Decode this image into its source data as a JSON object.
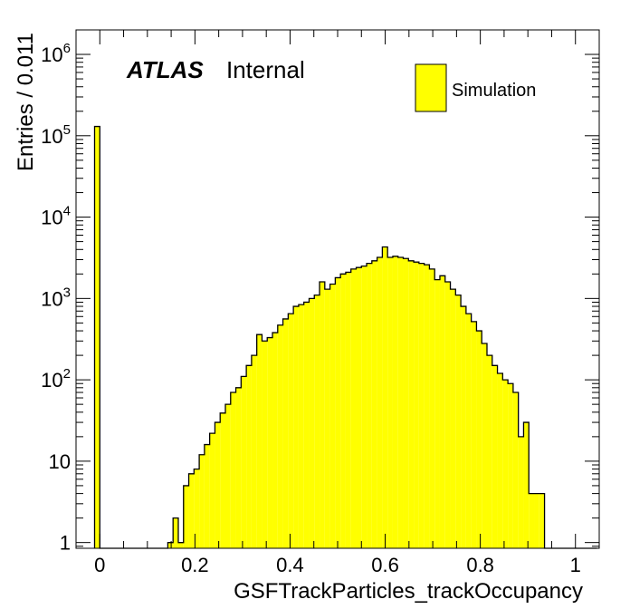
{
  "chart_data": {
    "type": "bar",
    "histogram": true,
    "bin_width": 0.011,
    "x_start": -0.011,
    "xlim": [
      -0.05,
      1.05
    ],
    "ylim": [
      0.85,
      2000000
    ],
    "log_y": true,
    "xlabel": "GSFTrackParticles_trackOccupancy",
    "ylabel": "Entries / 0.011",
    "x_ticks": [
      {
        "v": 0,
        "label": "0"
      },
      {
        "v": 0.2,
        "label": "0.2"
      },
      {
        "v": 0.4,
        "label": "0.4"
      },
      {
        "v": 0.6,
        "label": "0.6"
      },
      {
        "v": 0.8,
        "label": "0.8"
      },
      {
        "v": 1,
        "label": "1"
      }
    ],
    "y_ticks": [
      {
        "v": 1,
        "base": "1",
        "exp": ""
      },
      {
        "v": 10,
        "base": "10",
        "exp": ""
      },
      {
        "v": 100,
        "base": "10",
        "exp": "2"
      },
      {
        "v": 1000,
        "base": "10",
        "exp": "3"
      },
      {
        "v": 10000,
        "base": "10",
        "exp": "4"
      },
      {
        "v": 100000,
        "base": "10",
        "exp": "5"
      },
      {
        "v": 1000000,
        "base": "10",
        "exp": "6"
      }
    ],
    "atlas_label": "ATLAS",
    "atlas_status": "Internal",
    "legend_position": "top-right",
    "series": [
      {
        "name": "Simulation",
        "color": "#ffff00",
        "edge_color": "#000000",
        "values": [
          130000,
          0,
          0,
          0,
          0,
          0,
          0,
          0,
          0,
          0,
          0,
          0,
          0,
          0,
          1,
          2,
          1,
          5,
          7,
          8,
          12,
          16,
          22,
          30,
          39,
          50,
          70,
          80,
          110,
          150,
          200,
          360,
          300,
          330,
          380,
          470,
          560,
          650,
          800,
          840,
          900,
          1000,
          1100,
          1600,
          1300,
          1500,
          1800,
          2000,
          2100,
          2300,
          2400,
          2500,
          2700,
          2900,
          3200,
          4300,
          3200,
          3300,
          3200,
          3100,
          2900,
          2800,
          2700,
          2600,
          2300,
          1700,
          1900,
          1600,
          1300,
          1100,
          800,
          650,
          520,
          400,
          280,
          200,
          150,
          120,
          100,
          90,
          70,
          20,
          30,
          4,
          4,
          4,
          0,
          0,
          0,
          0,
          0,
          0,
          0,
          0,
          0,
          0
        ]
      }
    ]
  }
}
